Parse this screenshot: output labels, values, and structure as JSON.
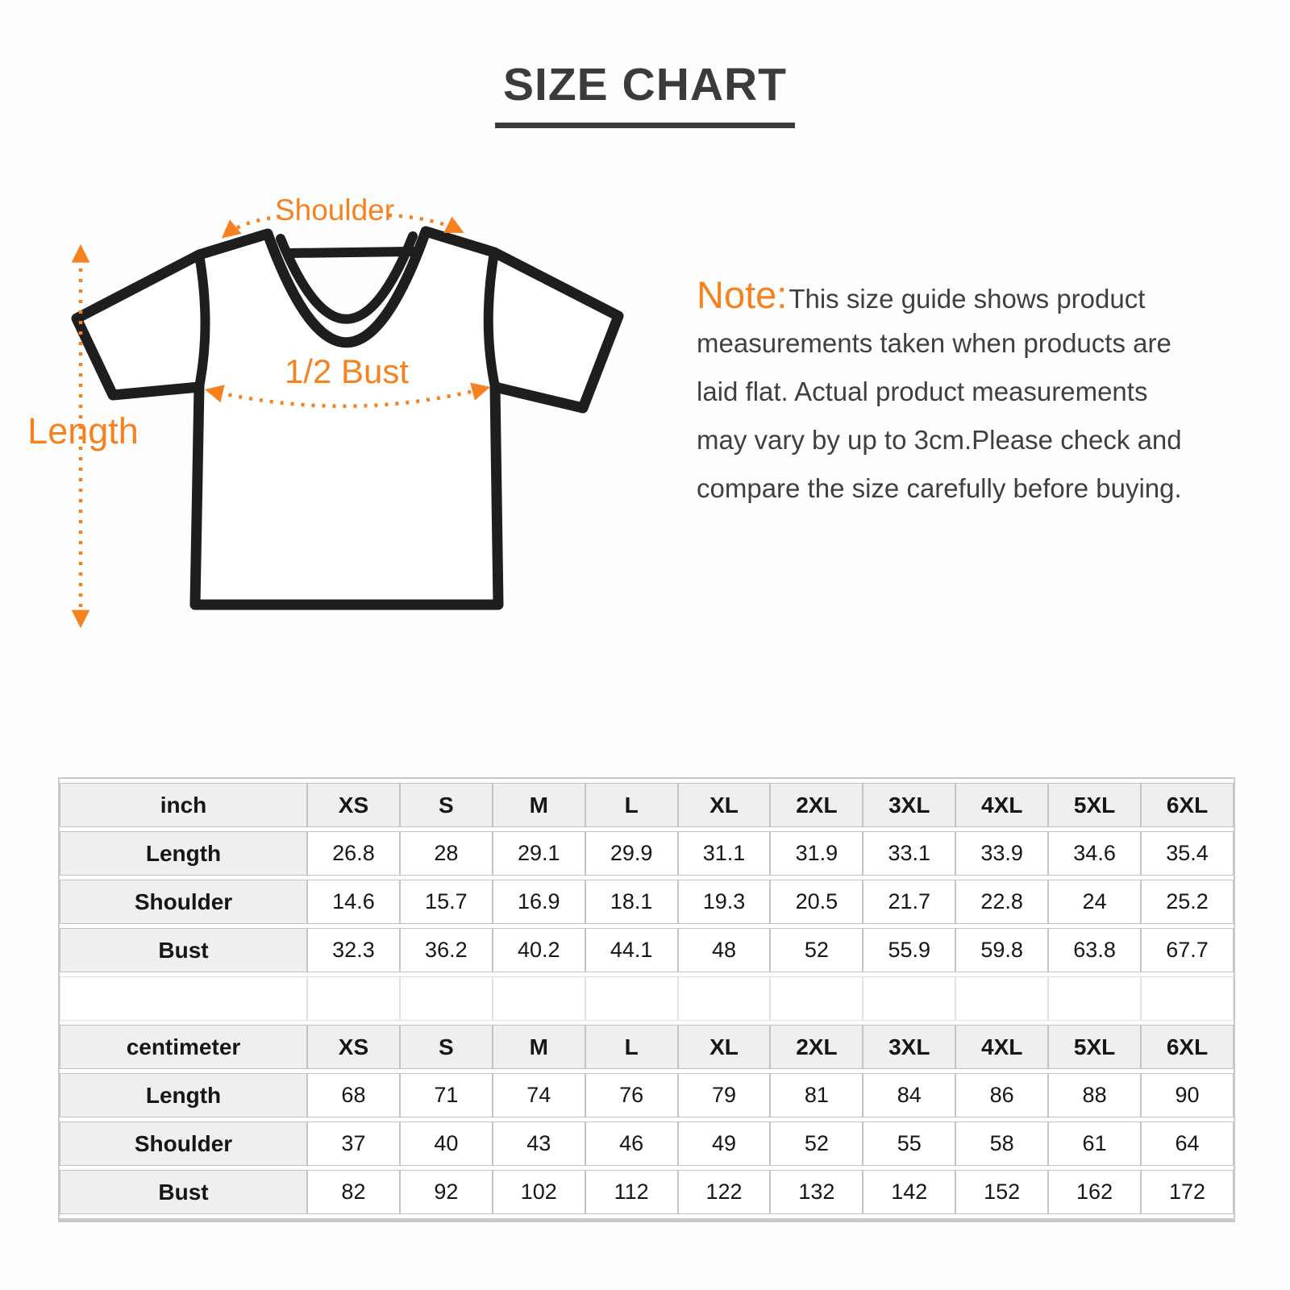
{
  "page": {
    "title": "SIZE CHART"
  },
  "diagram": {
    "shoulder_label": "Shoulder",
    "bust_label": "1/2 Bust",
    "length_label": "Length"
  },
  "note": {
    "prefix": "Note:",
    "lines": [
      "This size guide shows product",
      "measurements taken when products are",
      "laid flat. Actual product measurements",
      "may vary by up to 3cm.Please check and",
      "compare the size carefully before buying."
    ]
  },
  "size_table": {
    "columns": [
      "XS",
      "S",
      "M",
      "L",
      "XL",
      "2XL",
      "3XL",
      "4XL",
      "5XL",
      "6XL"
    ],
    "sections": [
      {
        "unit": "inch",
        "rows": [
          {
            "label": "Length",
            "values": [
              "26.8",
              "28",
              "29.1",
              "29.9",
              "31.1",
              "31.9",
              "33.1",
              "33.9",
              "34.6",
              "35.4"
            ]
          },
          {
            "label": "Shoulder",
            "values": [
              "14.6",
              "15.7",
              "16.9",
              "18.1",
              "19.3",
              "20.5",
              "21.7",
              "22.8",
              "24",
              "25.2"
            ]
          },
          {
            "label": "Bust",
            "values": [
              "32.3",
              "36.2",
              "40.2",
              "44.1",
              "48",
              "52",
              "55.9",
              "59.8",
              "63.8",
              "67.7"
            ]
          }
        ]
      },
      {
        "unit": "centimeter",
        "rows": [
          {
            "label": "Length",
            "values": [
              "68",
              "71",
              "74",
              "76",
              "79",
              "81",
              "84",
              "86",
              "88",
              "90"
            ]
          },
          {
            "label": "Shoulder",
            "values": [
              "37",
              "40",
              "43",
              "46",
              "49",
              "52",
              "55",
              "58",
              "61",
              "64"
            ]
          },
          {
            "label": "Bust",
            "values": [
              "82",
              "92",
              "102",
              "112",
              "122",
              "132",
              "142",
              "152",
              "162",
              "172"
            ]
          }
        ]
      }
    ]
  },
  "colors": {
    "accent": "#F5821F",
    "ink": "#1E1E1E",
    "title": "#3B3B3B"
  }
}
